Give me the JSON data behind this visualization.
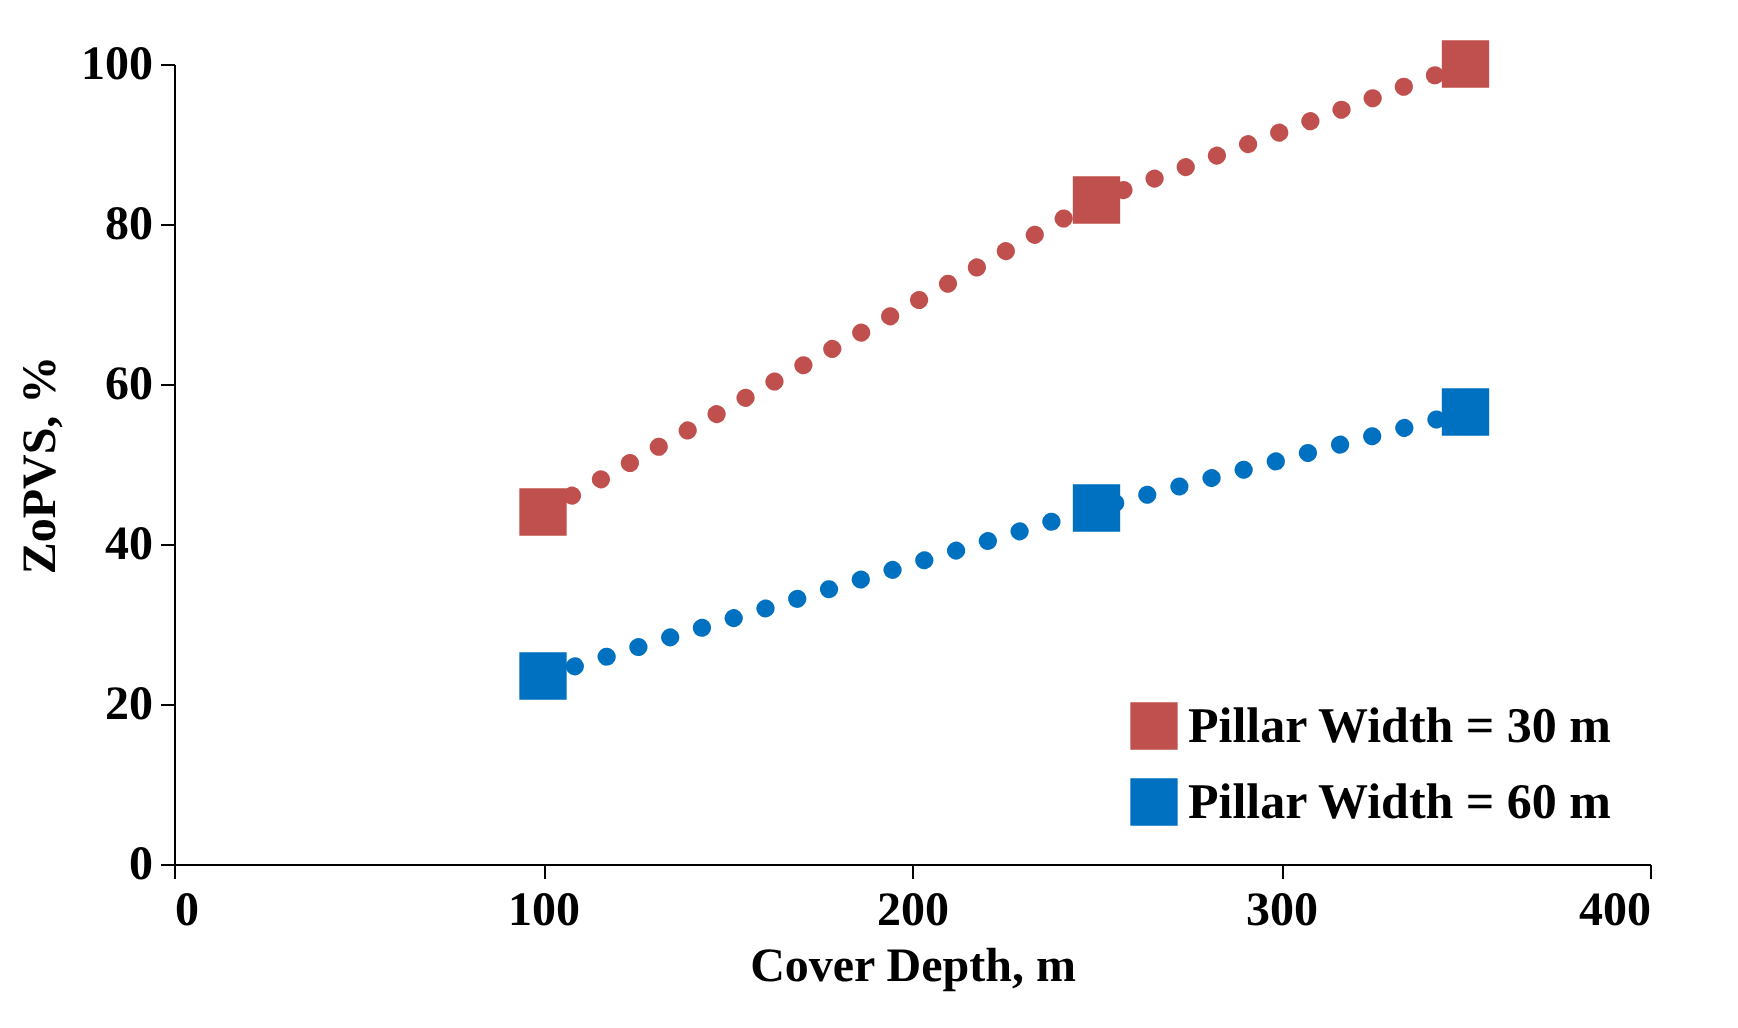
{
  "chart_data": {
    "type": "scatter",
    "xlabel": "Cover Depth, m",
    "ylabel": "ZoPVS, %",
    "xlim": [
      0,
      400
    ],
    "xticks": [
      0,
      100,
      200,
      300,
      400
    ],
    "ylim": [
      0,
      100
    ],
    "yticks": [
      0,
      20,
      40,
      60,
      80,
      100
    ],
    "grid": false,
    "legend": "bottom right",
    "series": [
      {
        "type": "line",
        "line_style": "dotted",
        "marker": "none",
        "color": "#c0504d",
        "x": [
          100,
          250,
          350
        ],
        "values": [
          44,
          83,
          100
        ]
      },
      {
        "type": "line",
        "line_style": "dotted",
        "marker": "none",
        "color": "#0070c0",
        "x": [
          100,
          250,
          350
        ],
        "values": [
          23.5,
          44.5,
          56.5
        ]
      },
      {
        "marker": "square",
        "name": "Pillar Width = 30 m",
        "color": "#c0504d",
        "x": [
          100,
          250,
          350
        ],
        "values": [
          44,
          83,
          100
        ]
      },
      {
        "marker": "square",
        "name": "Pillar Width = 60 m",
        "color": "#0070c0",
        "x": [
          100,
          250,
          350
        ],
        "values": [
          23.5,
          44.5,
          56.5
        ]
      }
    ]
  }
}
